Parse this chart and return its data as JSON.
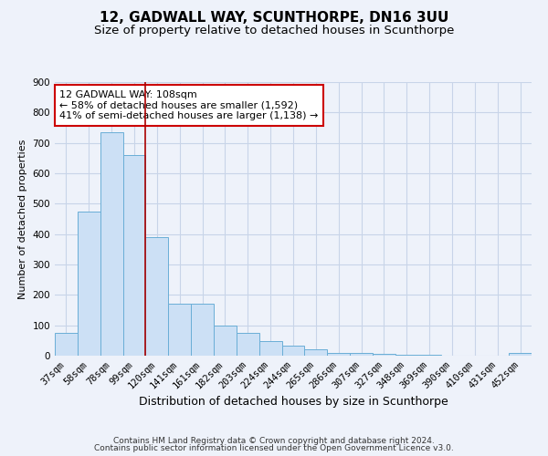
{
  "title": "12, GADWALL WAY, SCUNTHORPE, DN16 3UU",
  "subtitle": "Size of property relative to detached houses in Scunthorpe",
  "xlabel": "Distribution of detached houses by size in Scunthorpe",
  "ylabel": "Number of detached properties",
  "categories": [
    "37sqm",
    "58sqm",
    "78sqm",
    "99sqm",
    "120sqm",
    "141sqm",
    "161sqm",
    "182sqm",
    "203sqm",
    "224sqm",
    "244sqm",
    "265sqm",
    "286sqm",
    "307sqm",
    "327sqm",
    "348sqm",
    "369sqm",
    "390sqm",
    "410sqm",
    "431sqm",
    "452sqm"
  ],
  "values": [
    75,
    475,
    735,
    660,
    390,
    170,
    170,
    100,
    75,
    47,
    33,
    20,
    10,
    8,
    5,
    3,
    2,
    1,
    1,
    1,
    8
  ],
  "bar_color": "#cce0f5",
  "bar_edge_color": "#6aaed6",
  "grid_color": "#c8d4e8",
  "background_color": "#eef2fa",
  "vline_color": "#aa0000",
  "annotation_text": "12 GADWALL WAY: 108sqm\n← 58% of detached houses are smaller (1,592)\n41% of semi-detached houses are larger (1,138) →",
  "annotation_box_facecolor": "#ffffff",
  "annotation_box_edgecolor": "#cc0000",
  "ylim": [
    0,
    900
  ],
  "yticks": [
    0,
    100,
    200,
    300,
    400,
    500,
    600,
    700,
    800,
    900
  ],
  "footer_line1": "Contains HM Land Registry data © Crown copyright and database right 2024.",
  "footer_line2": "Contains public sector information licensed under the Open Government Licence v3.0.",
  "title_fontsize": 11,
  "subtitle_fontsize": 9.5,
  "xlabel_fontsize": 9,
  "ylabel_fontsize": 8,
  "tick_fontsize": 7.5,
  "annotation_fontsize": 8,
  "footer_fontsize": 6.5
}
